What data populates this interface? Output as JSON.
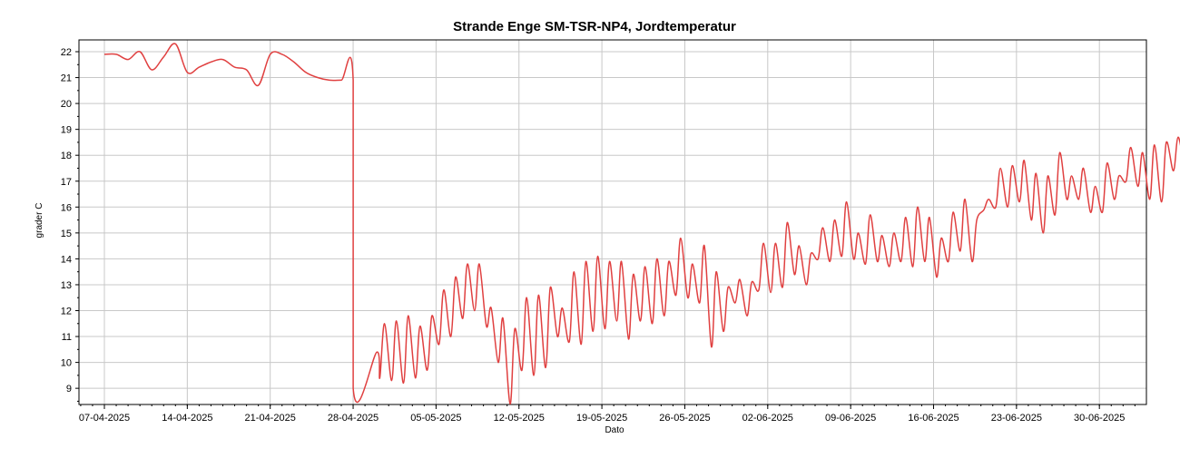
{
  "chart_data": {
    "type": "line",
    "title": "Strande Enge SM-TSR-NP4, Jordtemperatur",
    "xlabel": "Dato",
    "ylabel": "grader C",
    "x_ticks": [
      "07-04-2025",
      "14-04-2025",
      "21-04-2025",
      "28-04-2025",
      "05-05-2025",
      "12-05-2025",
      "19-05-2025",
      "26-05-2025",
      "02-06-2025",
      "09-06-2025",
      "16-06-2025",
      "23-06-2025",
      "30-06-2025"
    ],
    "y_ticks": [
      9,
      10,
      11,
      12,
      13,
      14,
      15,
      16,
      17,
      18,
      19,
      20,
      21,
      22
    ],
    "xlim": [
      "2025-04-05",
      "2025-07-04"
    ],
    "ylim": [
      8.4,
      22.5
    ],
    "grid": true,
    "line_color": "#e04040",
    "series": [
      {
        "points": [
          [
            "2025-04-07",
            21.9
          ],
          [
            "2025-04-08",
            21.9
          ],
          [
            "2025-04-09",
            21.7
          ],
          [
            "2025-04-10",
            22.0
          ],
          [
            "2025-04-11",
            21.3
          ],
          [
            "2025-04-12",
            21.8
          ],
          [
            "2025-04-13",
            22.3
          ],
          [
            "2025-04-14",
            21.2
          ],
          [
            "2025-04-15",
            21.4
          ],
          [
            "2025-04-16",
            21.6
          ],
          [
            "2025-04-17",
            21.7
          ],
          [
            "2025-04-18",
            21.4
          ],
          [
            "2025-04-19",
            21.3
          ],
          [
            "2025-04-20",
            20.7
          ],
          [
            "2025-04-21",
            21.9
          ],
          [
            "2025-04-22",
            21.9
          ],
          [
            "2025-04-23",
            21.6
          ],
          [
            "2025-04-24",
            21.2
          ],
          [
            "2025-04-25",
            21.0
          ],
          [
            "2025-04-26",
            20.9
          ],
          [
            "2025-04-27",
            20.9
          ],
          [
            "2025-04-28",
            20.9
          ],
          [
            "2025-04-28",
            9.0
          ],
          [
            "2025-04-30",
            10.4
          ]
        ],
        "daily": [
          [
            "2025-04-30",
            9.4,
            11.5
          ],
          [
            "2025-05-01",
            9.3,
            11.6
          ],
          [
            "2025-05-02",
            9.2,
            11.8
          ],
          [
            "2025-05-03",
            9.4,
            11.4
          ],
          [
            "2025-05-04",
            9.7,
            11.8
          ],
          [
            "2025-05-05",
            10.7,
            12.8
          ],
          [
            "2025-05-06",
            11.0,
            13.3
          ],
          [
            "2025-05-07",
            11.7,
            13.8
          ],
          [
            "2025-05-08",
            12.0,
            13.8
          ],
          [
            "2025-05-09",
            11.4,
            12.1
          ],
          [
            "2025-05-10",
            10.0,
            11.7
          ],
          [
            "2025-05-11",
            8.4,
            11.3
          ],
          [
            "2025-05-12",
            9.7,
            12.5
          ],
          [
            "2025-05-13",
            9.5,
            12.6
          ],
          [
            "2025-05-14",
            9.8,
            12.9
          ],
          [
            "2025-05-15",
            11.0,
            12.1
          ],
          [
            "2025-05-16",
            10.8,
            13.5
          ],
          [
            "2025-05-17",
            10.7,
            13.9
          ],
          [
            "2025-05-18",
            11.2,
            14.1
          ],
          [
            "2025-05-19",
            11.3,
            13.9
          ],
          [
            "2025-05-20",
            11.6,
            13.9
          ],
          [
            "2025-05-21",
            10.9,
            13.4
          ],
          [
            "2025-05-22",
            11.6,
            13.7
          ],
          [
            "2025-05-23",
            11.5,
            14.0
          ],
          [
            "2025-05-24",
            11.8,
            13.9
          ],
          [
            "2025-05-25",
            12.6,
            14.8
          ],
          [
            "2025-05-26",
            12.5,
            13.8
          ],
          [
            "2025-05-27",
            12.3,
            14.5
          ],
          [
            "2025-05-28",
            10.6,
            13.5
          ],
          [
            "2025-05-29",
            11.2,
            12.9
          ],
          [
            "2025-05-30",
            12.3,
            13.2
          ],
          [
            "2025-05-31",
            11.8,
            13.1
          ],
          [
            "2025-06-01",
            12.8,
            14.6
          ],
          [
            "2025-06-02",
            12.7,
            14.6
          ],
          [
            "2025-06-03",
            12.9,
            15.4
          ],
          [
            "2025-06-04",
            13.4,
            14.5
          ],
          [
            "2025-06-05",
            13.0,
            14.2
          ],
          [
            "2025-06-06",
            14.0,
            15.2
          ],
          [
            "2025-06-07",
            13.9,
            15.5
          ],
          [
            "2025-06-08",
            14.1,
            16.2
          ],
          [
            "2025-06-09",
            14.0,
            15.0
          ],
          [
            "2025-06-10",
            13.8,
            15.7
          ],
          [
            "2025-06-11",
            13.9,
            14.9
          ],
          [
            "2025-06-12",
            13.7,
            15.0
          ],
          [
            "2025-06-13",
            13.9,
            15.6
          ],
          [
            "2025-06-14",
            13.7,
            16.0
          ],
          [
            "2025-06-15",
            13.9,
            15.6
          ],
          [
            "2025-06-16",
            13.3,
            14.8
          ],
          [
            "2025-06-17",
            13.9,
            15.8
          ],
          [
            "2025-06-18",
            14.3,
            16.3
          ],
          [
            "2025-06-19",
            13.9,
            15.5
          ],
          [
            "2025-06-20",
            15.9,
            16.3
          ],
          [
            "2025-06-21",
            16.0,
            17.5
          ],
          [
            "2025-06-22",
            16.0,
            17.6
          ],
          [
            "2025-06-23",
            16.2,
            17.8
          ],
          [
            "2025-06-24",
            15.5,
            17.3
          ],
          [
            "2025-06-25",
            15.0,
            17.2
          ],
          [
            "2025-06-26",
            15.7,
            18.1
          ],
          [
            "2025-06-27",
            16.3,
            17.2
          ],
          [
            "2025-06-28",
            16.3,
            17.5
          ],
          [
            "2025-06-29",
            15.8,
            16.8
          ],
          [
            "2025-06-30",
            15.8,
            17.7
          ],
          [
            "2025-07-01",
            16.3,
            17.2
          ],
          [
            "2025-07-02",
            17.0,
            18.3
          ],
          [
            "2025-07-03",
            16.8,
            18.1
          ],
          [
            "2025-07-04",
            16.3,
            18.4
          ],
          [
            "2025-07-05",
            16.2,
            18.5
          ],
          [
            "2025-07-06",
            17.4,
            18.7
          ],
          [
            "2025-07-07",
            17.5,
            18.4
          ]
        ]
      }
    ]
  }
}
